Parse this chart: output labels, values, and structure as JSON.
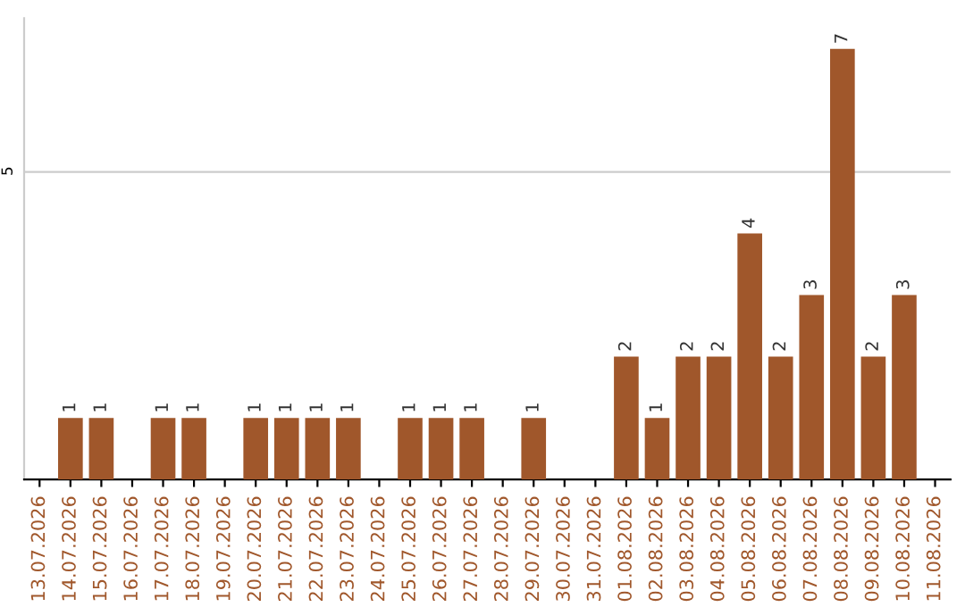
{
  "chart_data": {
    "type": "bar",
    "categories": [
      "13.07.2026",
      "14.07.2026",
      "15.07.2026",
      "16.07.2026",
      "17.07.2026",
      "18.07.2026",
      "19.07.2026",
      "20.07.2026",
      "21.07.2026",
      "22.07.2026",
      "23.07.2026",
      "24.07.2026",
      "25.07.2026",
      "26.07.2026",
      "27.07.2026",
      "28.07.2026",
      "29.07.2026",
      "30.07.2026",
      "31.07.2026",
      "01.08.2026",
      "02.08.2026",
      "03.08.2026",
      "04.08.2026",
      "05.08.2026",
      "06.08.2026",
      "07.08.2026",
      "08.08.2026",
      "09.08.2026",
      "10.08.2026",
      "11.08.2026"
    ],
    "values": [
      0,
      1,
      1,
      0,
      1,
      1,
      0,
      1,
      1,
      1,
      1,
      0,
      1,
      1,
      1,
      0,
      1,
      0,
      0,
      2,
      1,
      2,
      2,
      4,
      2,
      3,
      7,
      2,
      3,
      0
    ],
    "value_labels": [
      null,
      "1",
      "1",
      null,
      "1",
      "1",
      null,
      "1",
      "1",
      "1",
      "1",
      null,
      "1",
      "1",
      "1",
      null,
      "1",
      null,
      null,
      "2",
      "1",
      "2",
      "2",
      "4",
      "2",
      "3",
      "7",
      "2",
      "3",
      null
    ],
    "color": "#a0572b",
    "ylim": [
      0,
      7.5
    ],
    "yticks": [
      5
    ],
    "grid": "y"
  }
}
